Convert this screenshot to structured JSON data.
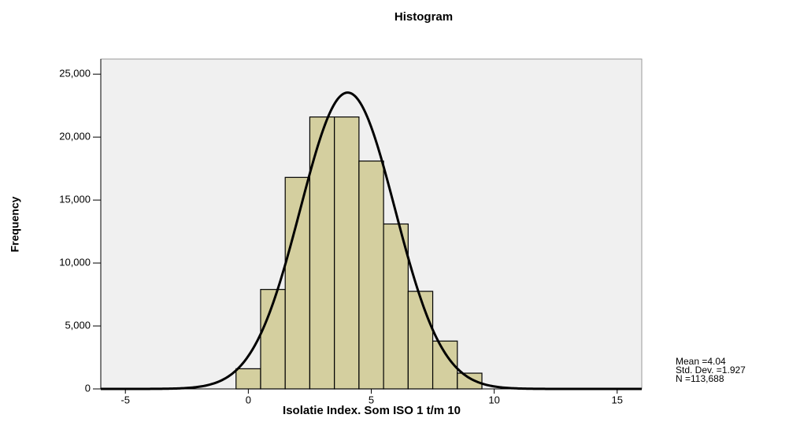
{
  "chart_data": {
    "type": "histogram",
    "title": "Histogram",
    "x_label": "Isolatie Index. Som ISO 1 t/m 10",
    "y_label": "Frequency",
    "bins": [
      -0.5,
      0.5,
      1.5,
      2.5,
      3.5,
      4.5,
      5.5,
      6.5,
      7.5,
      8.5,
      9.5
    ],
    "values": [
      1600,
      7900,
      16800,
      21600,
      21600,
      18100,
      13100,
      7750,
      3800,
      1250
    ],
    "color": "#d4cf9f",
    "curve_color": "#000000",
    "xlim": [
      -6,
      16
    ],
    "xticks": [
      -5,
      0,
      5,
      10,
      15
    ],
    "ylim": [
      0,
      26200
    ],
    "yticks": [
      0,
      {
        "value": 5000,
        "label": "5,000"
      },
      {
        "value": 10000,
        "label": "10,000"
      },
      {
        "value": 15000,
        "label": "15,000"
      },
      {
        "value": 20000,
        "label": "20,000"
      },
      {
        "value": 25000,
        "label": "25,000"
      }
    ],
    "mean": 4.04,
    "std": 1.927,
    "n": 113688,
    "stats_labels": [
      "Mean =4.04",
      "Std. Dev. =1.927",
      "N =113,688"
    ]
  }
}
